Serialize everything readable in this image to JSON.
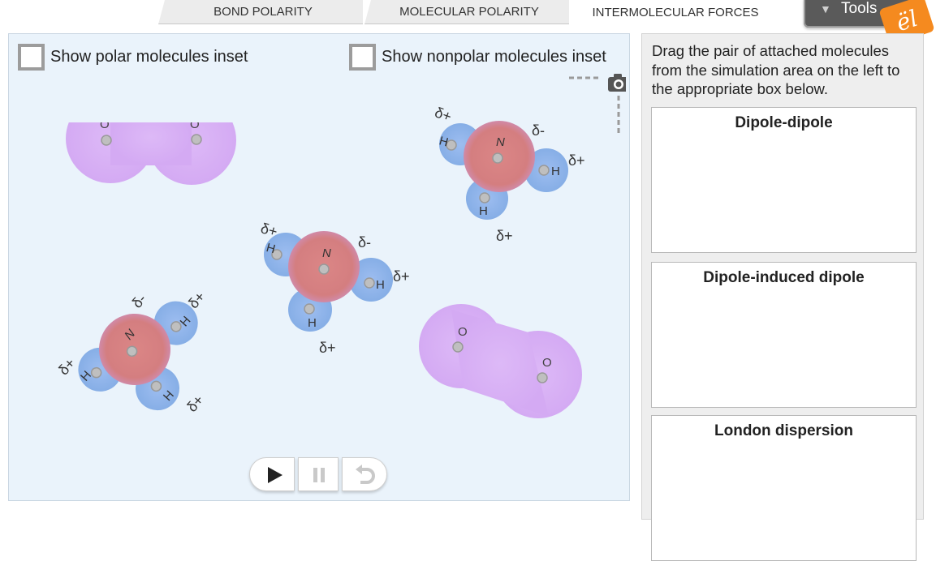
{
  "tabs": [
    {
      "label": "BOND POLARITY"
    },
    {
      "label": "MOLECULAR POLARITY"
    },
    {
      "label": "INTERMOLECULAR FORCES",
      "active": true
    }
  ],
  "tools": {
    "label": "Tools"
  },
  "logo": {
    "text": "ël"
  },
  "checkboxes": {
    "polar": {
      "label": "Show polar molecules inset",
      "checked": false
    },
    "nonpolar": {
      "label": "Show nonpolar molecules inset",
      "checked": false
    }
  },
  "molecules": {
    "atom_labels": {
      "n": "N",
      "h": "H",
      "o": "O"
    },
    "delta_plus": "δ+",
    "delta_minus": "δ-"
  },
  "instructions": "Drag the pair of attached molecules from the simulation area on the left to the appropriate box below.",
  "drop_boxes": [
    {
      "title": "Dipole-dipole"
    },
    {
      "title": "Dipole-induced dipole"
    },
    {
      "title": "London dispersion"
    }
  ],
  "colors": {
    "nitrogen": "#d98080",
    "hydrogen": "#8fb4e8",
    "oxygen_cloud": "#d9b3f5",
    "sim_background": "#eaf3fb",
    "logo": "#f58a1f"
  },
  "icons": {
    "camera": "camera-icon",
    "play": "play-icon",
    "pause": "pause-icon",
    "reset": "reset-icon",
    "dropdown": "triangle-down-icon"
  }
}
